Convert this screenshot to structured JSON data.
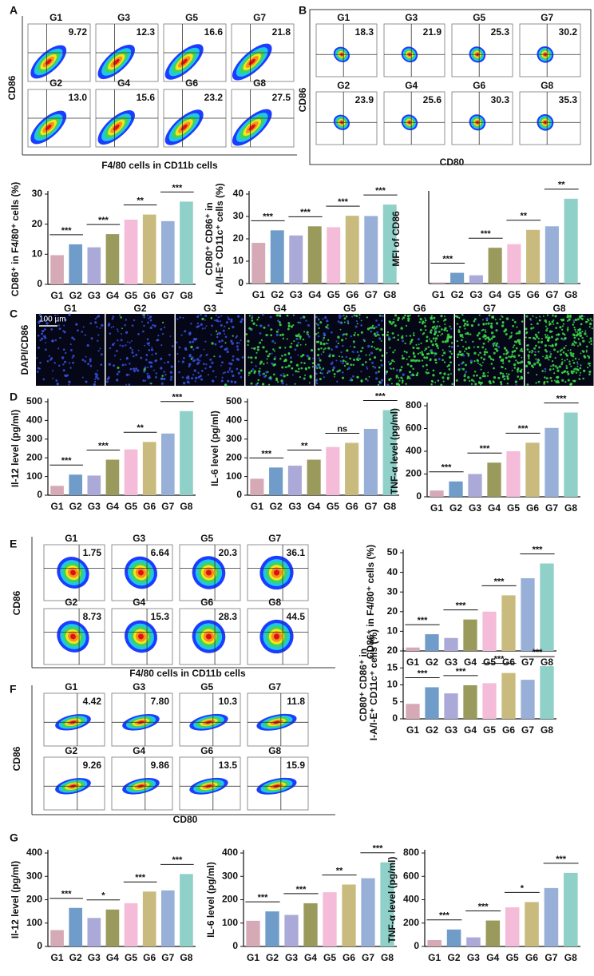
{
  "panel_labels": [
    "A",
    "B",
    "C",
    "D",
    "E",
    "F",
    "G"
  ],
  "group_colors": [
    "#d6a9b6",
    "#6f9cc8",
    "#aaa9d8",
    "#9a9a5c",
    "#f4bcd8",
    "#c9bb7d",
    "#98afd8",
    "#8fd0c9"
  ],
  "flow_panels": [
    {
      "y_label": "CD86",
      "x_label": "F4/80 cells in CD11b cells",
      "plots": [
        {
          "label": "G1",
          "value": "9.72"
        },
        {
          "label": "G3",
          "value": "12.3"
        },
        {
          "label": "G5",
          "value": "16.6"
        },
        {
          "label": "G7",
          "value": "21.8"
        },
        {
          "label": "G2",
          "value": "13.0"
        },
        {
          "label": "G4",
          "value": "15.6"
        },
        {
          "label": "G6",
          "value": "23.2"
        },
        {
          "label": "G8",
          "value": "27.5"
        }
      ]
    },
    {
      "y_label": "CD86",
      "x_label": "CD80",
      "plots": [
        {
          "label": "G1",
          "value": "18.3"
        },
        {
          "label": "G3",
          "value": "21.9"
        },
        {
          "label": "G5",
          "value": "25.3"
        },
        {
          "label": "G7",
          "value": "30.2"
        },
        {
          "label": "G2",
          "value": "23.9"
        },
        {
          "label": "G4",
          "value": "25.6"
        },
        {
          "label": "G6",
          "value": "30.3"
        },
        {
          "label": "G8",
          "value": "35.3"
        }
      ]
    },
    {
      "y_label": "CD86",
      "x_label": "F4/80 cells in CD11b cells",
      "plots": [
        {
          "label": "G1",
          "value": "1.75"
        },
        {
          "label": "G3",
          "value": "6.64"
        },
        {
          "label": "G5",
          "value": "20.3"
        },
        {
          "label": "G7",
          "value": "36.1"
        },
        {
          "label": "G2",
          "value": "8.73"
        },
        {
          "label": "G4",
          "value": "15.3"
        },
        {
          "label": "G6",
          "value": "28.3"
        },
        {
          "label": "G8",
          "value": "44.5"
        }
      ]
    },
    {
      "y_label": "CD86",
      "x_label": "CD80",
      "plots": [
        {
          "label": "G1",
          "value": "4.42"
        },
        {
          "label": "G3",
          "value": "7.80"
        },
        {
          "label": "G5",
          "value": "10.3"
        },
        {
          "label": "G7",
          "value": "11.8"
        },
        {
          "label": "G2",
          "value": "9.26"
        },
        {
          "label": "G4",
          "value": "9.86"
        },
        {
          "label": "G6",
          "value": "13.5"
        },
        {
          "label": "G8",
          "value": "15.9"
        }
      ]
    }
  ],
  "image_panel": {
    "y_label": "DAPI/CD86",
    "scale_bar": "100 µm",
    "labels": [
      "G1",
      "G2",
      "G3",
      "G4",
      "G5",
      "G6",
      "G7",
      "G8"
    ]
  },
  "chart_data": [
    {
      "type": "bar",
      "y_label": [
        "CD86⁺ in F4/80⁺ cells (%)"
      ],
      "categories": [
        "G1",
        "G2",
        "G3",
        "G4",
        "G5",
        "G6",
        "G7",
        "G8"
      ],
      "values": [
        9.7,
        13.3,
        12.3,
        16.7,
        21.5,
        23.2,
        21.0,
        27.5
      ],
      "ylim": [
        0,
        30
      ],
      "yticks": [
        0,
        10,
        20,
        30
      ],
      "significance": [
        "***",
        "***",
        "**",
        "***"
      ]
    },
    {
      "type": "bar",
      "y_label": [
        "CD80⁺ CD86⁺ in",
        "I-A/I-E⁺ CD11c⁺ cells (%)"
      ],
      "categories": [
        "G1",
        "G2",
        "G3",
        "G4",
        "G5",
        "G6",
        "G7",
        "G8"
      ],
      "values": [
        18.2,
        23.8,
        21.5,
        25.6,
        25.2,
        30.3,
        30.2,
        35.3
      ],
      "ylim": [
        0,
        40
      ],
      "yticks": [
        0,
        10,
        20,
        30,
        40
      ],
      "significance": [
        "***",
        "***",
        "***",
        "***"
      ]
    },
    {
      "type": "bar",
      "y_label": [
        "MFI of CD86"
      ],
      "categories": [
        "G1",
        "G2",
        "G3",
        "G4",
        "G5",
        "G6",
        "G7",
        "G8"
      ],
      "values": [
        0.3,
        3.0,
        2.3,
        10.0,
        11.0,
        15.0,
        16.0,
        23.7
      ],
      "ylim": [
        0,
        25
      ],
      "significance": [
        "***",
        "***",
        "**",
        "**"
      ]
    },
    {
      "type": "bar",
      "y_label": [
        "Il-12 level (pg/ml)"
      ],
      "categories": [
        "G1",
        "G2",
        "G3",
        "G4",
        "G5",
        "G6",
        "G7",
        "G8"
      ],
      "values": [
        50,
        110,
        105,
        190,
        245,
        285,
        330,
        450
      ],
      "ylim": [
        0,
        500
      ],
      "yticks": [
        0,
        100,
        200,
        300,
        400,
        500
      ],
      "significance": [
        "***",
        "***",
        "**",
        "***"
      ]
    },
    {
      "type": "bar",
      "y_label": [
        "IL-6 level (pg/ml)"
      ],
      "categories": [
        "G1",
        "G2",
        "G3",
        "G4",
        "G5",
        "G6",
        "G7",
        "G8"
      ],
      "values": [
        88,
        148,
        158,
        190,
        258,
        280,
        355,
        455
      ],
      "ylim": [
        0,
        500
      ],
      "yticks": [
        0,
        100,
        200,
        300,
        400,
        500
      ],
      "significance": [
        "***",
        "**",
        "ns",
        "***"
      ]
    },
    {
      "type": "bar",
      "y_label": [
        "TNF-α level (pg/ml)"
      ],
      "categories": [
        "G1",
        "G2",
        "G3",
        "G4",
        "G5",
        "G6",
        "G7",
        "G8"
      ],
      "values": [
        55,
        135,
        200,
        300,
        400,
        475,
        605,
        740
      ],
      "ylim": [
        0,
        800
      ],
      "yticks": [
        0,
        200,
        400,
        600,
        800
      ],
      "significance": [
        "***",
        "***",
        "***",
        "***"
      ]
    },
    {
      "type": "bar",
      "y_label": [
        "CD86⁺ in F4/80⁺ cells (%)"
      ],
      "categories": [
        "G1",
        "G2",
        "G3",
        "G4",
        "G5",
        "G6",
        "G7",
        "G8"
      ],
      "values": [
        1.75,
        8.5,
        6.6,
        16.0,
        20.0,
        28.3,
        37.0,
        44.5
      ],
      "ylim": [
        0,
        50
      ],
      "yticks": [
        0,
        10,
        20,
        30,
        40,
        50
      ],
      "significance": [
        "***",
        "***",
        "***",
        "***"
      ]
    },
    {
      "type": "bar",
      "y_label": [
        "CD80⁺ CD86⁺ in",
        "I-A/I-E⁺ CD11c⁺ cells (%)"
      ],
      "categories": [
        "G1",
        "G2",
        "G3",
        "G4",
        "G5",
        "G6",
        "G7",
        "G8"
      ],
      "values": [
        4.4,
        9.3,
        7.5,
        9.9,
        10.5,
        13.5,
        11.5,
        15.5
      ],
      "ylim": [
        0,
        20
      ],
      "yticks": [
        0,
        5,
        10,
        15,
        20
      ],
      "significance": [
        "***",
        "***",
        "***",
        "***"
      ]
    },
    {
      "type": "bar",
      "y_label": [
        "Il-12 level (pg/ml)"
      ],
      "categories": [
        "G1",
        "G2",
        "G3",
        "G4",
        "G5",
        "G6",
        "G7",
        "G8"
      ],
      "values": [
        70,
        165,
        122,
        158,
        185,
        235,
        240,
        310
      ],
      "ylim": [
        0,
        400
      ],
      "yticks": [
        0,
        100,
        200,
        300,
        400
      ],
      "significance": [
        "***",
        "*",
        "***",
        "***"
      ]
    },
    {
      "type": "bar",
      "y_label": [
        "IL-6 level (pg/ml)"
      ],
      "categories": [
        "G1",
        "G2",
        "G3",
        "G4",
        "G5",
        "G6",
        "G7",
        "G8"
      ],
      "values": [
        110,
        150,
        135,
        185,
        232,
        265,
        292,
        360
      ],
      "ylim": [
        0,
        400
      ],
      "yticks": [
        0,
        100,
        200,
        300,
        400
      ],
      "significance": [
        "***",
        "***",
        "**",
        "***"
      ]
    },
    {
      "type": "bar",
      "y_label": [
        "TNF-α level (pg/ml)"
      ],
      "categories": [
        "G1",
        "G2",
        "G3",
        "G4",
        "G5",
        "G6",
        "G7",
        "G8"
      ],
      "values": [
        55,
        145,
        78,
        222,
        335,
        380,
        500,
        630
      ],
      "ylim": [
        0,
        800
      ],
      "yticks": [
        0,
        200,
        400,
        600,
        800
      ],
      "significance": [
        "***",
        "***",
        "*",
        "***"
      ]
    }
  ]
}
